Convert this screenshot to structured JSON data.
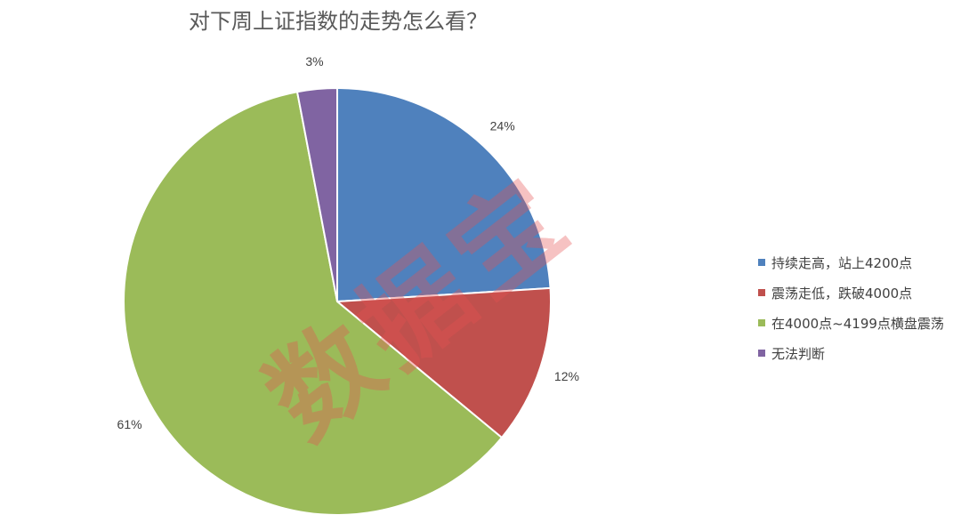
{
  "chart_data": {
    "type": "pie",
    "title": "对下周上证指数的走势怎么看？",
    "categories": [
      "持续走高，站上4200点",
      "震荡走低，跌破4000点",
      "在4000点~4199点横盘震荡",
      "无法判断"
    ],
    "values": [
      24,
      12,
      61,
      3
    ],
    "data_labels": [
      "24%",
      "12%",
      "61%",
      "3%"
    ],
    "colors": [
      "#4f81bd",
      "#c0504d",
      "#9bbb59",
      "#8064a2"
    ],
    "legend_position": "right",
    "start_angle": "top, clockwise"
  },
  "watermark": "数据宝"
}
